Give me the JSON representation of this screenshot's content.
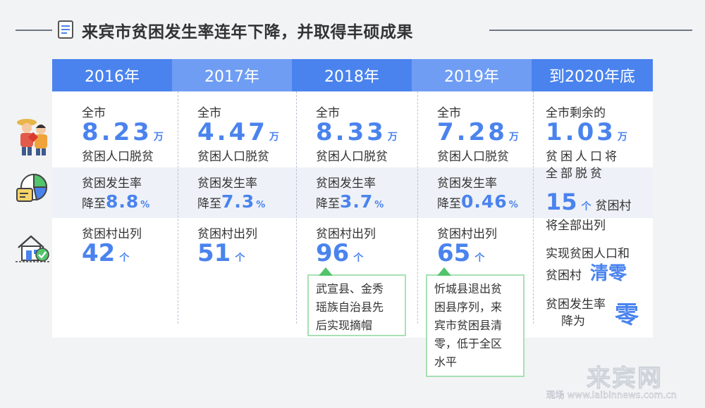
{
  "title": "来宾市贫困发生率连年下降，并取得丰硕成果",
  "headers": [
    "2016年",
    "2017年",
    "2018年",
    "2019年",
    "到2020年底"
  ],
  "years": [
    {
      "pop_label": "全市",
      "pop_value": "8.23",
      "pop_unit": "万",
      "pop_desc": "贫困人口脱贫",
      "rate_label": "贫困发生率",
      "rate_prefix": "降至",
      "rate_value": "8.8",
      "rate_unit": "%",
      "village_label": "贫困村出列",
      "village_value": "42",
      "village_unit": "个"
    },
    {
      "pop_label": "全市",
      "pop_value": "4.47",
      "pop_unit": "万",
      "pop_desc": "贫困人口脱贫",
      "rate_label": "贫困发生率",
      "rate_prefix": "降至",
      "rate_value": "7.3",
      "rate_unit": "%",
      "village_label": "贫困村出列",
      "village_value": "51",
      "village_unit": "个"
    },
    {
      "pop_label": "全市",
      "pop_value": "8.33",
      "pop_unit": "万",
      "pop_desc": "贫困人口脱贫",
      "rate_label": "贫困发生率",
      "rate_prefix": "降至",
      "rate_value": "3.7",
      "rate_unit": "%",
      "village_label": "贫困村出列",
      "village_value": "96",
      "village_unit": "个"
    },
    {
      "pop_label": "全市",
      "pop_value": "7.28",
      "pop_unit": "万",
      "pop_desc": "贫困人口脱贫",
      "rate_label": "贫困发生率",
      "rate_prefix": "降至",
      "rate_value": "0.46",
      "rate_unit": "%",
      "village_label": "贫困村出列",
      "village_value": "65",
      "village_unit": "个"
    }
  ],
  "notes": {
    "y2018": [
      "武宣县、金秀",
      "瑶族自治县先",
      "后实现摘帽"
    ],
    "y2019": [
      "忻城县退出贫",
      "困县序列，来",
      "宾市贫困县清",
      "零，低于全区",
      "水平"
    ]
  },
  "final": {
    "pop_label": "全市剩余的",
    "pop_value": "1.03",
    "pop_unit": "万",
    "pop_desc_1": "贫困人口将",
    "pop_desc_2": "全部脱贫",
    "village_value": "15",
    "village_unit": "个",
    "village_label": "贫困村",
    "village_desc": "将全部出列",
    "clear_line_1": "实现贫困人口和",
    "clear_line_2": "贫困村",
    "clear_word": "清零",
    "rate_line_1": "贫困发生率",
    "rate_line_2": "降为",
    "zero_word": "零"
  },
  "watermark": {
    "logo": "来宾网",
    "text": "现场  www.laibinnews.com.cn"
  },
  "icons": {
    "title": "document-icon",
    "row1": "farmers-icon",
    "row2": "pie-chart-icon",
    "row3": "house-check-icon"
  },
  "colors": {
    "accent": "#4a83ee",
    "header_alt": "#6f9df3",
    "band": "#eef1f7",
    "note_border": "#a8e0b4",
    "note_pointer": "#52c46b"
  }
}
